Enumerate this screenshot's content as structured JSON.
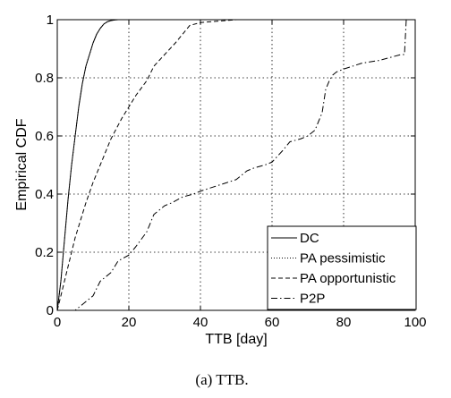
{
  "caption": "(a)  TTB.",
  "chart_data": {
    "type": "line",
    "title": "",
    "xlabel": "TTB [day]",
    "ylabel": "Empirical CDF",
    "xlim": [
      0,
      100
    ],
    "ylim": [
      0,
      1
    ],
    "xticks": [
      0,
      20,
      40,
      60,
      80,
      100
    ],
    "yticks": [
      0,
      0.2,
      0.4,
      0.6,
      0.8,
      1
    ],
    "xtick_labels": [
      "0",
      "20",
      "40",
      "60",
      "80",
      "100"
    ],
    "ytick_labels": [
      "0",
      "0.2",
      "0.4",
      "0.6",
      "0.8",
      "1"
    ],
    "grid": true,
    "legend_position": "bottom-right",
    "series": [
      {
        "name": "DC",
        "dash": "solid",
        "x": [
          0,
          1,
          2,
          3,
          4,
          5,
          6,
          7,
          8,
          9,
          10,
          11,
          12,
          13,
          14,
          15,
          16,
          17,
          18,
          20,
          97
        ],
        "y": [
          0,
          0.1,
          0.24,
          0.38,
          0.5,
          0.6,
          0.7,
          0.78,
          0.84,
          0.88,
          0.92,
          0.95,
          0.97,
          0.985,
          0.993,
          0.997,
          0.999,
          1,
          1,
          1,
          1
        ]
      },
      {
        "name": "PA pessimistic",
        "dash": "dotted",
        "x": [
          0,
          1,
          2,
          3,
          4,
          5,
          6,
          7,
          8,
          9,
          10,
          11,
          12,
          13,
          14,
          15,
          16,
          17,
          18,
          20,
          97
        ],
        "y": [
          0,
          0.1,
          0.24,
          0.38,
          0.5,
          0.6,
          0.7,
          0.78,
          0.84,
          0.88,
          0.92,
          0.95,
          0.97,
          0.985,
          0.993,
          0.997,
          0.999,
          1,
          1,
          1,
          1
        ]
      },
      {
        "name": "PA opportunistic",
        "dash": "dashed",
        "x": [
          0,
          2,
          5,
          8,
          10,
          12,
          15,
          18,
          20,
          22,
          25,
          27,
          30,
          33,
          35,
          37,
          40,
          45,
          50,
          52,
          97
        ],
        "y": [
          0,
          0.1,
          0.25,
          0.37,
          0.44,
          0.5,
          0.59,
          0.66,
          0.7,
          0.74,
          0.79,
          0.84,
          0.88,
          0.92,
          0.95,
          0.98,
          0.99,
          0.995,
          1,
          1,
          1
        ]
      },
      {
        "name": "P2P",
        "dash": "dashdot",
        "x": [
          0,
          5,
          7,
          10,
          12,
          15,
          17,
          20,
          22,
          25,
          27,
          30,
          32,
          35,
          38,
          40,
          45,
          50,
          53,
          55,
          58,
          60,
          63,
          65,
          68,
          70,
          72,
          73,
          74,
          75,
          76,
          77,
          78,
          80,
          85,
          90,
          96,
          97,
          97.5
        ],
        "y": [
          0,
          0.0,
          0.02,
          0.05,
          0.1,
          0.13,
          0.17,
          0.19,
          0.22,
          0.27,
          0.33,
          0.36,
          0.37,
          0.39,
          0.4,
          0.41,
          0.43,
          0.45,
          0.48,
          0.49,
          0.5,
          0.51,
          0.55,
          0.58,
          0.59,
          0.6,
          0.62,
          0.65,
          0.68,
          0.76,
          0.79,
          0.81,
          0.82,
          0.83,
          0.85,
          0.86,
          0.88,
          0.88,
          1.0
        ]
      }
    ]
  }
}
